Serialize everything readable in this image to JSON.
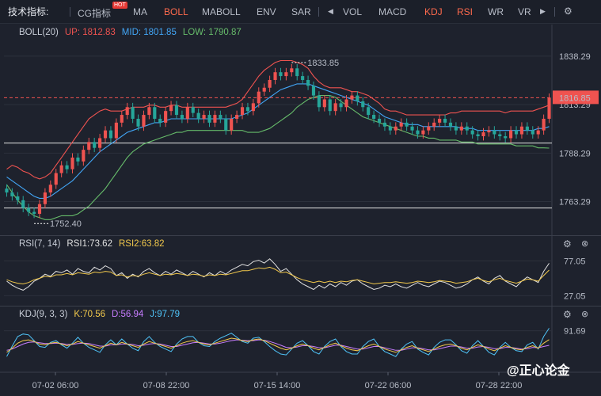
{
  "toolbar": {
    "title": "技术指标:",
    "items": [
      "CG指标",
      "MA",
      "BOLL",
      "MABOLL",
      "ENV",
      "SAR",
      "VOL",
      "MACD",
      "KDJ",
      "RSI",
      "WR",
      "VR"
    ],
    "hot_badge": "HOT",
    "active_items": [
      "BOLL",
      "KDJ",
      "RSI"
    ],
    "left_arrow_icon": "triangle-left-icon",
    "right_arrow_icon": "triangle-right-icon",
    "settings_icon": "gear-icon"
  },
  "boll_header": {
    "name": "BOLL(20)",
    "up": "UP: 1812.83",
    "mid": "MID: 1801.85",
    "low": "LOW: 1790.87"
  },
  "rsi_header": {
    "name": "RSI(7, 14)",
    "rsi1": "RSI1:73.62",
    "rsi2": "RSI2:63.82"
  },
  "kdj_header": {
    "name": "KDJ(9, 3, 3)",
    "k": "K:70.56",
    "d": "D:56.94",
    "j": "J:97.79"
  },
  "price_axis": {
    "ticks": [
      "1838.29",
      "1813.29",
      "1788.29",
      "1763.29"
    ],
    "tick_values": [
      1838.29,
      1813.29,
      1788.29,
      1763.29
    ],
    "current_price": "1816.85",
    "high_label": "1833.85",
    "low_label": "1752.40"
  },
  "rsi_axis": {
    "ticks": [
      "77.05",
      "27.05"
    ]
  },
  "kdj_axis": {
    "ticks": [
      "91.69"
    ]
  },
  "time_axis": {
    "labels": [
      "07-02 06:00",
      "07-08 22:00",
      "07-15 14:00",
      "07-22 06:00",
      "07-28 22:00"
    ]
  },
  "watermark": "@正心论金",
  "colors": {
    "up_candle": "#ef5350",
    "down_candle": "#26a69a",
    "boll_up": "#ef5350",
    "boll_mid": "#42a5f5",
    "boll_low": "#66bb6a",
    "rsi1": "#e0e0e0",
    "rsi2": "#f2c94c",
    "k": "#f2c94c",
    "d": "#c77dff",
    "j": "#4fc3f7"
  },
  "chart_data": {
    "type": "line",
    "ylim": [
      1748,
      1846
    ],
    "hlines": [
      1816.85,
      1793.5,
      1760.0
    ],
    "candles_close": [
      1768,
      1766,
      1764,
      1760,
      1758,
      1757,
      1762,
      1768,
      1772,
      1778,
      1782,
      1780,
      1786,
      1784,
      1790,
      1794,
      1791,
      1796,
      1800,
      1796,
      1804,
      1808,
      1812,
      1806,
      1802,
      1808,
      1812,
      1806,
      1804,
      1810,
      1813,
      1808,
      1806,
      1812,
      1809,
      1806,
      1808,
      1804,
      1808,
      1806,
      1800,
      1806,
      1808,
      1812,
      1810,
      1814,
      1820,
      1822,
      1826,
      1830,
      1828,
      1830,
      1832,
      1828,
      1826,
      1823,
      1818,
      1812,
      1816,
      1810,
      1814,
      1812,
      1816,
      1818,
      1815,
      1812,
      1808,
      1806,
      1804,
      1802,
      1800,
      1802,
      1804,
      1802,
      1800,
      1798,
      1800,
      1802,
      1804,
      1806,
      1804,
      1802,
      1800,
      1802,
      1800,
      1798,
      1797,
      1799,
      1800,
      1798,
      1797,
      1796,
      1800,
      1798,
      1802,
      1800,
      1798,
      1800,
      1806,
      1816.85
    ],
    "boll_up": [
      1780,
      1782,
      1781,
      1779,
      1778,
      1776,
      1775,
      1776,
      1778,
      1782,
      1786,
      1790,
      1794,
      1798,
      1802,
      1806,
      1808,
      1810,
      1811,
      1810,
      1810,
      1810,
      1811,
      1812,
      1812,
      1812,
      1813,
      1813,
      1812,
      1812,
      1813,
      1813,
      1812,
      1812,
      1812,
      1812,
      1812,
      1812,
      1812,
      1812,
      1812,
      1813,
      1814,
      1816,
      1820,
      1824,
      1828,
      1831,
      1833,
      1835,
      1836,
      1836,
      1836,
      1835,
      1834,
      1832,
      1828,
      1825,
      1823,
      1822,
      1822,
      1822,
      1821,
      1820,
      1820,
      1819,
      1818,
      1816,
      1814,
      1811,
      1810,
      1810,
      1809,
      1808,
      1808,
      1808,
      1808,
      1808,
      1808,
      1808,
      1808,
      1809,
      1809,
      1810,
      1810,
      1810,
      1810,
      1810,
      1810,
      1810,
      1810,
      1809,
      1810,
      1810,
      1810,
      1810,
      1810,
      1811,
      1812,
      1813
    ],
    "boll_mid": [
      1776,
      1774,
      1772,
      1770,
      1768,
      1766,
      1765,
      1765,
      1766,
      1768,
      1770,
      1772,
      1774,
      1777,
      1780,
      1783,
      1786,
      1789,
      1791,
      1793,
      1795,
      1797,
      1799,
      1800,
      1801,
      1802,
      1803,
      1804,
      1804,
      1805,
      1806,
      1806,
      1806,
      1806,
      1806,
      1806,
      1806,
      1806,
      1806,
      1806,
      1806,
      1806,
      1807,
      1808,
      1809,
      1811,
      1813,
      1815,
      1817,
      1819,
      1821,
      1822,
      1823,
      1824,
      1824,
      1824,
      1823,
      1822,
      1821,
      1820,
      1819,
      1818,
      1817,
      1816,
      1815,
      1814,
      1813,
      1811,
      1809,
      1807,
      1806,
      1805,
      1804,
      1803,
      1803,
      1803,
      1802,
      1802,
      1802,
      1802,
      1802,
      1802,
      1802,
      1801,
      1801,
      1801,
      1800,
      1800,
      1800,
      1800,
      1800,
      1800,
      1800,
      1800,
      1800,
      1800,
      1800,
      1801,
      1801,
      1802
    ],
    "boll_low": [
      1772,
      1768,
      1764,
      1761,
      1758,
      1756,
      1755,
      1754,
      1754,
      1755,
      1756,
      1756,
      1756,
      1757,
      1759,
      1761,
      1764,
      1767,
      1770,
      1774,
      1778,
      1782,
      1786,
      1789,
      1791,
      1793,
      1794,
      1795,
      1796,
      1797,
      1798,
      1799,
      1799,
      1800,
      1800,
      1800,
      1800,
      1800,
      1800,
      1800,
      1800,
      1800,
      1800,
      1800,
      1799,
      1799,
      1799,
      1800,
      1801,
      1803,
      1805,
      1807,
      1809,
      1812,
      1814,
      1816,
      1817,
      1818,
      1818,
      1818,
      1817,
      1815,
      1813,
      1811,
      1809,
      1807,
      1806,
      1805,
      1804,
      1803,
      1802,
      1801,
      1800,
      1799,
      1798,
      1797,
      1797,
      1796,
      1796,
      1795,
      1795,
      1795,
      1795,
      1794,
      1794,
      1794,
      1793,
      1793,
      1793,
      1793,
      1793,
      1793,
      1793,
      1792,
      1792,
      1792,
      1792,
      1791,
      1791,
      1790.87
    ],
    "rsi_ylim": [
      15,
      90
    ],
    "rsi1": [
      48,
      42,
      38,
      35,
      40,
      48,
      52,
      58,
      55,
      62,
      60,
      64,
      58,
      66,
      62,
      60,
      68,
      64,
      70,
      66,
      56,
      60,
      52,
      58,
      54,
      62,
      66,
      60,
      56,
      62,
      58,
      64,
      60,
      56,
      62,
      58,
      54,
      60,
      56,
      62,
      58,
      64,
      68,
      72,
      70,
      76,
      78,
      74,
      80,
      72,
      62,
      66,
      58,
      50,
      44,
      40,
      36,
      42,
      38,
      44,
      40,
      46,
      42,
      48,
      50,
      44,
      40,
      36,
      38,
      42,
      40,
      44,
      40,
      38,
      42,
      46,
      42,
      40,
      44,
      48,
      46,
      42,
      38,
      40,
      44,
      50,
      54,
      48,
      44,
      52,
      56,
      48,
      44,
      40,
      48,
      54,
      50,
      46,
      62,
      73.62
    ],
    "rsi2": [
      50,
      47,
      45,
      44,
      46,
      50,
      52,
      55,
      54,
      57,
      57,
      59,
      57,
      60,
      59,
      58,
      61,
      60,
      62,
      61,
      56,
      57,
      54,
      56,
      55,
      58,
      60,
      58,
      56,
      58,
      57,
      59,
      58,
      56,
      58,
      57,
      55,
      57,
      56,
      58,
      57,
      59,
      61,
      63,
      63,
      65,
      67,
      66,
      68,
      65,
      60,
      61,
      57,
      53,
      50,
      48,
      46,
      48,
      46,
      48,
      46,
      48,
      47,
      49,
      50,
      48,
      46,
      44,
      45,
      46,
      46,
      47,
      46,
      45,
      46,
      48,
      47,
      46,
      47,
      49,
      48,
      47,
      45,
      46,
      47,
      50,
      52,
      49,
      47,
      50,
      52,
      49,
      47,
      45,
      48,
      51,
      50,
      48,
      56,
      63.82
    ],
    "kdj_ylim": [
      0,
      110
    ],
    "k": [
      40,
      50,
      62,
      68,
      70,
      66,
      60,
      58,
      62,
      64,
      60,
      56,
      60,
      66,
      62,
      58,
      54,
      50,
      56,
      62,
      58,
      64,
      60,
      56,
      52,
      60,
      66,
      62,
      58,
      54,
      50,
      56,
      62,
      66,
      68,
      64,
      60,
      58,
      62,
      66,
      70,
      74,
      72,
      68,
      66,
      70,
      72,
      68,
      62,
      56,
      50,
      46,
      50,
      56,
      60,
      56,
      50,
      46,
      52,
      58,
      62,
      56,
      50,
      46,
      44,
      50,
      56,
      60,
      54,
      48,
      44,
      40,
      46,
      52,
      56,
      50,
      46,
      42,
      48,
      54,
      58,
      60,
      56,
      50,
      46,
      52,
      58,
      54,
      48,
      44,
      50,
      56,
      52,
      48,
      46,
      52,
      56,
      50,
      62,
      70.56
    ],
    "d": [
      45,
      48,
      54,
      60,
      64,
      65,
      63,
      61,
      61,
      62,
      61,
      59,
      59,
      61,
      62,
      61,
      58,
      55,
      55,
      58,
      58,
      60,
      60,
      59,
      56,
      57,
      60,
      61,
      60,
      57,
      54,
      54,
      57,
      60,
      63,
      64,
      62,
      60,
      60,
      62,
      65,
      68,
      70,
      69,
      68,
      68,
      70,
      69,
      66,
      62,
      57,
      52,
      51,
      53,
      56,
      56,
      54,
      51,
      51,
      54,
      57,
      57,
      54,
      51,
      48,
      48,
      51,
      54,
      54,
      51,
      48,
      45,
      45,
      48,
      51,
      51,
      49,
      46,
      46,
      49,
      52,
      55,
      55,
      53,
      50,
      50,
      53,
      54,
      52,
      49,
      49,
      52,
      52,
      50,
      48,
      49,
      52,
      51,
      54,
      56.94
    ],
    "j": [
      30,
      55,
      78,
      84,
      82,
      68,
      54,
      52,
      64,
      68,
      58,
      50,
      62,
      76,
      62,
      52,
      46,
      40,
      58,
      70,
      58,
      72,
      60,
      50,
      44,
      66,
      78,
      64,
      54,
      48,
      42,
      60,
      72,
      78,
      78,
      64,
      56,
      54,
      66,
      74,
      80,
      86,
      76,
      66,
      62,
      74,
      76,
      66,
      54,
      44,
      36,
      34,
      48,
      62,
      68,
      56,
      42,
      36,
      54,
      66,
      72,
      54,
      42,
      36,
      36,
      54,
      66,
      72,
      54,
      42,
      36,
      30,
      48,
      60,
      66,
      48,
      40,
      34,
      52,
      64,
      70,
      70,
      58,
      44,
      38,
      56,
      68,
      54,
      40,
      34,
      52,
      64,
      52,
      44,
      42,
      58,
      64,
      48,
      78,
      97.79
    ]
  }
}
